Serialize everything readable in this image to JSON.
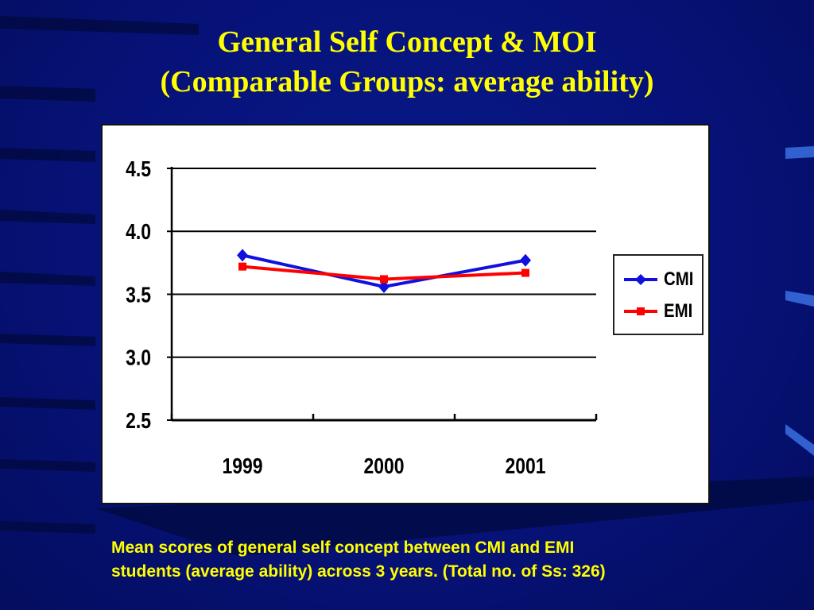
{
  "slide": {
    "title_line1": "General Self Concept & MOI",
    "title_line2": "(Comparable Groups: average ability)",
    "caption_line1": "Mean scores of general self concept between CMI and EMI",
    "caption_line2": "students (average ability) across 3 years. (Total no. of Ss:  326)"
  },
  "colors": {
    "background": "#061278",
    "title": "#ffff00",
    "cmi": "#1010e0",
    "emi": "#ff0000"
  },
  "chart_data": {
    "type": "line",
    "categories": [
      "1999",
      "2000",
      "2001"
    ],
    "y_ticks": [
      "4.5",
      "4.0",
      "3.5",
      "3.0",
      "2.5"
    ],
    "ylim": [
      2.5,
      4.5
    ],
    "grid": true,
    "legend_position": "right",
    "series": [
      {
        "name": "CMI",
        "marker": "diamond",
        "values": [
          3.81,
          3.56,
          3.77
        ]
      },
      {
        "name": "EMI",
        "marker": "square",
        "values": [
          3.72,
          3.62,
          3.67
        ]
      }
    ]
  }
}
